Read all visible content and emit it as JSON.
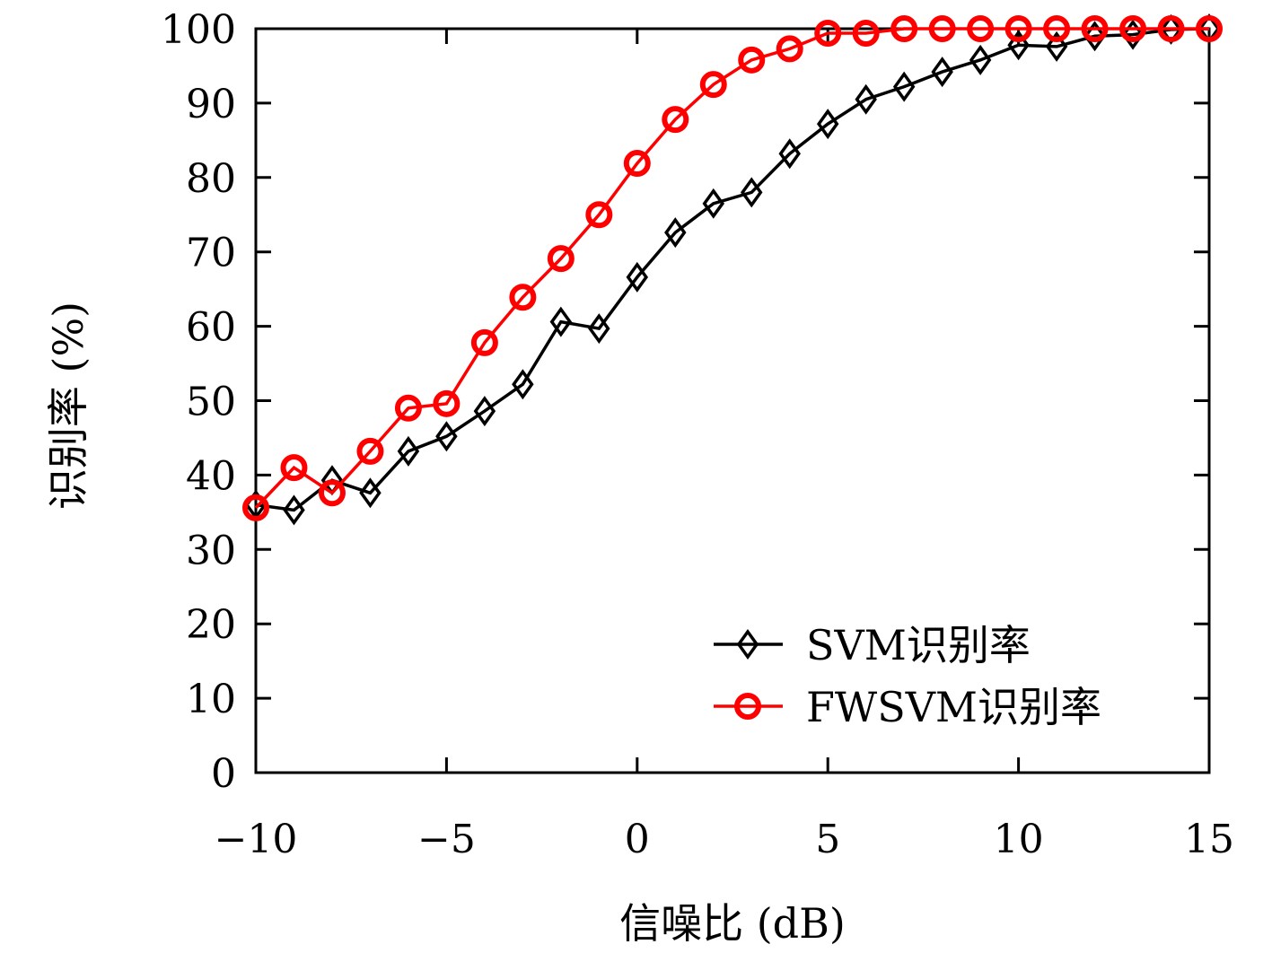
{
  "chart_data": {
    "type": "line",
    "title": "",
    "xlabel": "信噪比 (dB)",
    "ylabel": "识别率 (%)",
    "xlim": [
      -10,
      15
    ],
    "ylim": [
      0,
      100
    ],
    "xticks": [
      -10,
      -5,
      0,
      5,
      10,
      15
    ],
    "xtick_labels": [
      "−10",
      "−5",
      "0",
      "5",
      "10",
      "15"
    ],
    "yticks": [
      0,
      10,
      20,
      30,
      40,
      50,
      60,
      70,
      80,
      90,
      100
    ],
    "ytick_labels": [
      "0",
      "10",
      "20",
      "30",
      "40",
      "50",
      "60",
      "70",
      "80",
      "90",
      "100"
    ],
    "grid": false,
    "legend_position": "bottom-right",
    "x": [
      -10,
      -9,
      -8,
      -7,
      -6,
      -5,
      -4,
      -3,
      -2,
      -1,
      0,
      1,
      2,
      3,
      4,
      5,
      6,
      7,
      8,
      9,
      10,
      11,
      12,
      13,
      14,
      15
    ],
    "series": [
      {
        "name": "SVM识别率",
        "color": "#000000",
        "marker": "diamond",
        "values": [
          36.0,
          35.3,
          39.3,
          37.6,
          43.2,
          45.2,
          48.6,
          52.2,
          60.6,
          59.7,
          66.6,
          72.6,
          76.5,
          78.0,
          83.2,
          87.2,
          90.5,
          92.2,
          94.2,
          95.8,
          97.8,
          97.6,
          99.0,
          99.2,
          99.9,
          100.0
        ]
      },
      {
        "name": "FWSVM识别率",
        "color": "#ff0000",
        "marker": "circle",
        "values": [
          35.6,
          41.0,
          37.6,
          43.2,
          49.0,
          49.6,
          57.8,
          63.9,
          69.1,
          75.0,
          81.9,
          87.8,
          92.5,
          95.8,
          97.3,
          99.4,
          99.4,
          100.0,
          100.0,
          100.0,
          100.0,
          100.0,
          100.0,
          100.0,
          100.0,
          100.0
        ]
      }
    ]
  }
}
